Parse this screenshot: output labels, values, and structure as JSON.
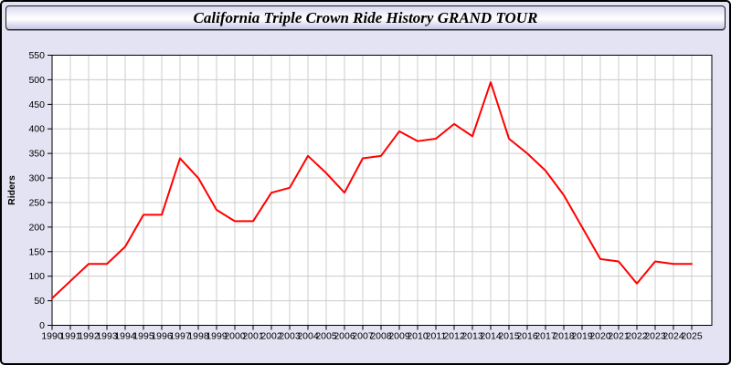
{
  "page": {
    "background_color": "#e3e3f3",
    "border_color": "#000000"
  },
  "header": {
    "title": "California Triple Crown Ride History GRAND TOUR",
    "gradient_top": "#d9d9ef",
    "gradient_middle": "#ffffff",
    "gradient_bottom": "#c5c5e5",
    "border_color": "#1a1a1a"
  },
  "chart_data": {
    "type": "line",
    "title": "California Triple Crown Ride History GRAND TOUR",
    "xlabel": "",
    "ylabel": "Riders",
    "x": [
      1990,
      1991,
      1992,
      1993,
      1994,
      1995,
      1996,
      1997,
      1998,
      1999,
      2000,
      2001,
      2002,
      2003,
      2004,
      2005,
      2006,
      2007,
      2008,
      2009,
      2010,
      2011,
      2012,
      2013,
      2014,
      2015,
      2016,
      2017,
      2018,
      2019,
      2020,
      2021,
      2022,
      2023,
      2024,
      2025
    ],
    "values": [
      55,
      90,
      125,
      125,
      160,
      225,
      225,
      340,
      300,
      235,
      212,
      212,
      270,
      280,
      345,
      310,
      270,
      340,
      345,
      395,
      375,
      380,
      410,
      385,
      495,
      380,
      350,
      315,
      265,
      200,
      135,
      130,
      85,
      130,
      125,
      125
    ],
    "ylim": [
      0,
      550
    ],
    "ytick_step": 50,
    "grid": true,
    "legend": "none",
    "line_color": "#ff0000",
    "line_width": 2,
    "plot_bg": "#ffffff",
    "grid_color": "#cccccc",
    "axis_color": "#000000",
    "tick_label_color": "#000000"
  }
}
